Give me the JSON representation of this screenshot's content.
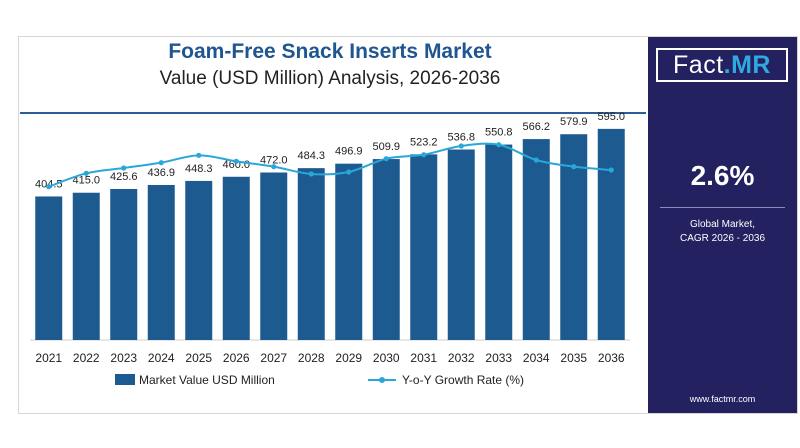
{
  "header": {
    "title": "Foam-Free Snack Inserts Market",
    "subtitle": "Value (USD Million) Analysis, 2026-2036"
  },
  "sidebar": {
    "logo_left": "Fact",
    "logo_right": ".MR",
    "cagr_value": "2.6%",
    "cagr_label_line1": "Global Market,",
    "cagr_label_line2": "CAGR 2026 - 2036",
    "website": "www.factmr.com"
  },
  "colors": {
    "bar": "#1c5a8f",
    "line": "#2aa7d9",
    "panel": "#23215f",
    "title": "#1f5591"
  },
  "chart_data": {
    "type": "bar",
    "categories": [
      "2021",
      "2022",
      "2023",
      "2024",
      "2025",
      "2026",
      "2027",
      "2028",
      "2029",
      "2030",
      "2031",
      "2032",
      "2033",
      "2034",
      "2035",
      "2036"
    ],
    "series": [
      {
        "name": "Market Value USD Million",
        "type": "bar",
        "values": [
          404.5,
          415.0,
          425.6,
          436.9,
          448.3,
          460.0,
          472.0,
          484.3,
          496.9,
          509.9,
          523.2,
          536.8,
          550.8,
          566.2,
          579.9,
          595.0
        ],
        "labels": [
          "404.5",
          "415.0",
          "425.6",
          "436.9",
          "448.3",
          "460.0",
          "472.0",
          "484.3",
          "496.9",
          "509.9",
          "523.2",
          "536.8",
          "550.8",
          "566.2",
          "579.9",
          "595.0"
        ]
      },
      {
        "name": "Y-o-Y Growth Rate (%)",
        "type": "line",
        "values": [
          2.3,
          2.5,
          2.58,
          2.66,
          2.77,
          2.68,
          2.6,
          2.49,
          2.52,
          2.72,
          2.78,
          2.91,
          2.93,
          2.7,
          2.6,
          2.55
        ]
      }
    ],
    "ylim": [
      0,
      620
    ],
    "y2lim": [
      0.0,
      3.3
    ],
    "grid": false,
    "legend_position": "bottom"
  }
}
